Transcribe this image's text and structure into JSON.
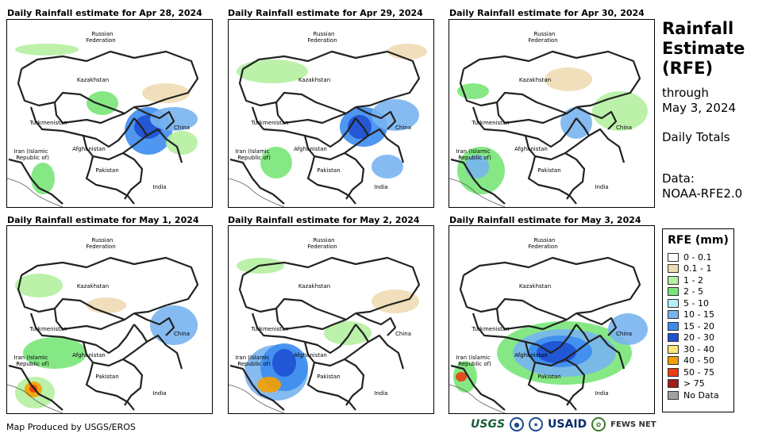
{
  "panels": [
    {
      "title": "Daily Rainfall estimate for Apr 28, 2024"
    },
    {
      "title": "Daily Rainfall estimate for Apr 29, 2024"
    },
    {
      "title": "Daily Rainfall estimate for Apr 30, 2024"
    },
    {
      "title": "Daily Rainfall estimate for May 1, 2024"
    },
    {
      "title": "Daily Rainfall estimate for May 2, 2024"
    },
    {
      "title": "Daily Rainfall estimate for May 3, 2024"
    }
  ],
  "map_labels": {
    "russia_1": "Russian",
    "russia_2": "Federation",
    "kazakhstan": "Kazakhstan",
    "turkmenistan": "Turkmenistan",
    "china": "China",
    "iran_1": "Iran  (Islamic",
    "iran_2": "Republic of)",
    "afghanistan": "Afghanistan",
    "pakistan": "Pakistan",
    "india": "India"
  },
  "side": {
    "title_1": "Rainfall",
    "title_2": "Estimate",
    "title_3": "(RFE)",
    "through_1": "through",
    "through_2": "May 3, 2024",
    "totals": "Daily Totals",
    "data_1": "Data:",
    "data_2": "NOAA-RFE2.0"
  },
  "legend": {
    "title": "RFE (mm)",
    "items": [
      {
        "label": "0 - 0.1",
        "color": "#ffffff"
      },
      {
        "label": "0.1 - 1",
        "color": "#f0dcb4"
      },
      {
        "label": "1 - 2",
        "color": "#b4f0a0"
      },
      {
        "label": "2 - 5",
        "color": "#78e678"
      },
      {
        "label": "5 - 10",
        "color": "#b4f0fa"
      },
      {
        "label": "10 - 15",
        "color": "#78b4f0"
      },
      {
        "label": "15 - 20",
        "color": "#3c8cf0"
      },
      {
        "label": "20 - 30",
        "color": "#1e50d2"
      },
      {
        "label": "30 - 40",
        "color": "#fae67a"
      },
      {
        "label": "40 - 50",
        "color": "#f5a000"
      },
      {
        "label": "50 - 75",
        "color": "#f03c14"
      },
      {
        "label": "> 75",
        "color": "#a01e1e"
      },
      {
        "label": "No Data",
        "color": "#a0a0a0"
      }
    ]
  },
  "footer": {
    "credit": "Map Produced by USGS/EROS"
  },
  "logos": {
    "usgs": "USGS",
    "usaid": "USAID",
    "fews": "FEWS NET"
  }
}
